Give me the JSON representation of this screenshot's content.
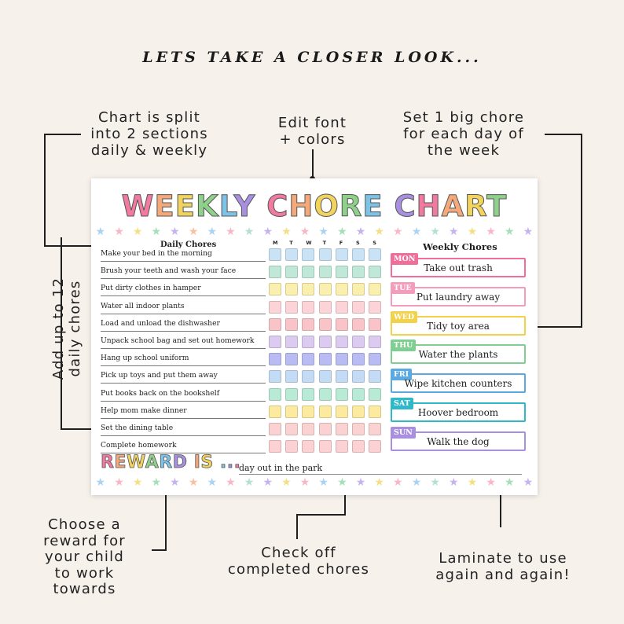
{
  "header": "LETS TAKE A CLOSER LOOK...",
  "notes": {
    "split": [
      "Chart is split",
      "into 2 sections",
      "daily & weekly"
    ],
    "font": [
      "Edit font",
      "+ colors"
    ],
    "big_chore": [
      "Set 1 big chore",
      "for each day of",
      "the week"
    ],
    "add_chores": [
      "Add up to 12",
      "daily chores"
    ],
    "reward": [
      "Choose a",
      "reward for",
      "your child",
      "to work",
      "towards"
    ],
    "check": [
      "Check off",
      "completed chores"
    ],
    "laminate": [
      "Laminate to use",
      "again and again!"
    ]
  },
  "chart": {
    "title_words": [
      {
        "text": "WEEKLY",
        "letters": [
          "W",
          "E",
          "E",
          "K",
          "L",
          "Y"
        ]
      },
      {
        "text": "CHORE",
        "letters": [
          "C",
          "H",
          "O",
          "R",
          "E"
        ]
      },
      {
        "text": "CHART",
        "letters": [
          "C",
          "H",
          "A",
          "R",
          "T"
        ]
      }
    ],
    "title_colors": [
      "#f07aa0",
      "#f5a97a",
      "#f2d35e",
      "#8fd18a",
      "#7dc3e8",
      "#a88fe0"
    ],
    "daily_heading": "Daily Chores",
    "days": [
      "M",
      "T",
      "W",
      "T",
      "F",
      "S",
      "S"
    ],
    "daily_chores": [
      "Make your bed in the morning",
      "Brush your teeth and wash your face",
      "Put dirty clothes in hamper",
      "Water all indoor plants",
      "Load and unload the dishwasher",
      "Unpack school bag and set out homework",
      "Hang up school uniform",
      "Pick up toys and put them away",
      "Put books back on the bookshelf",
      "Help mom make dinner",
      "Set the dining table",
      "Complete homework"
    ],
    "row_colors": [
      "#c9e3f5",
      "#bfe8d8",
      "#fbefb0",
      "#fcd3d6",
      "#f8c4c7",
      "#dccbf0",
      "#b9bcf2",
      "#c3dbf5",
      "#b8ead5",
      "#fbeaa0",
      "#fbd2d2",
      "#fbd1d4"
    ],
    "weekly_heading": "Weekly Chores",
    "weekly": [
      {
        "day": "MON",
        "chore": "Take out trash",
        "color": "#f06e9a"
      },
      {
        "day": "TUE",
        "chore": "Put laundry away",
        "color": "#f49cbb"
      },
      {
        "day": "WED",
        "chore": "Tidy toy area",
        "color": "#f2d24a"
      },
      {
        "day": "THU",
        "chore": "Water the plants",
        "color": "#7fcf93"
      },
      {
        "day": "FRI",
        "chore": "Wipe kitchen counters",
        "color": "#5aa9e0"
      },
      {
        "day": "SAT",
        "chore": "Hoover bedroom",
        "color": "#2fb8c8"
      },
      {
        "day": "SUN",
        "chore": "Walk the dog",
        "color": "#a88fe0"
      }
    ],
    "reward_label": "REWARD IS ...",
    "reward_letters": [
      "R",
      "E",
      "W",
      "A",
      "R",
      "D",
      " ",
      "I",
      "S",
      " ",
      ".",
      ".",
      "."
    ],
    "reward_value": "day out in the park",
    "star_colors": [
      "#a9d3f2",
      "#f9b6c6",
      "#f5df85",
      "#a6dfb7",
      "#c7b2ee",
      "#f7c0a2",
      "#a9d3f2",
      "#f9b6c6",
      "#b5e0d0",
      "#c7b2ee",
      "#f5df85",
      "#f9b6c6",
      "#a9d3f2",
      "#a6dfb7",
      "#c7b2ee",
      "#f5df85",
      "#f9b6c6",
      "#a9d3f2",
      "#b5e0d0",
      "#c7b2ee",
      "#f5df85",
      "#f9b6c6",
      "#a6dfb7",
      "#c7b2ee"
    ]
  }
}
